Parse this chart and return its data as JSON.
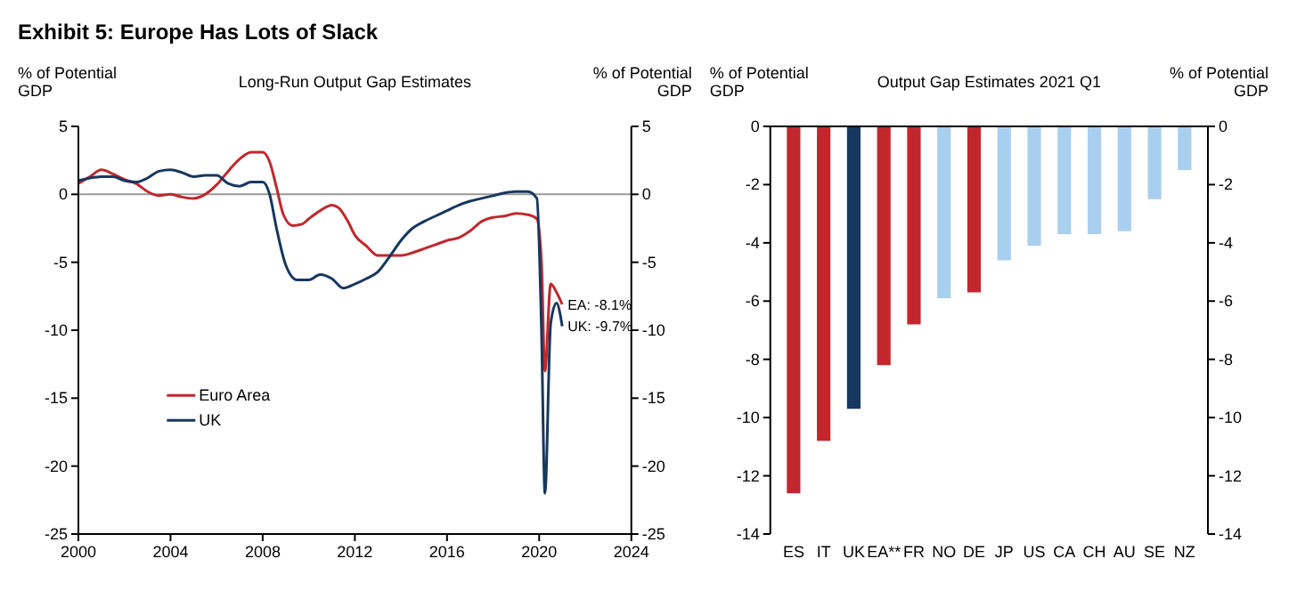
{
  "chart_data": [
    {
      "type": "line",
      "title": "Exhibit 5: Europe Has Lots of Slack",
      "subtitle": "Long-Run Output Gap Estimates",
      "ylabel": "% of Potential GDP",
      "y2label": "% of Potential GDP",
      "xlim": [
        2000,
        2024
      ],
      "xticks": [
        2000,
        2004,
        2008,
        2012,
        2016,
        2020,
        2024
      ],
      "ylim": [
        -25,
        5
      ],
      "yticks": [
        -25,
        -20,
        -15,
        -10,
        -5,
        0,
        5
      ],
      "y2lim": [
        -25,
        5
      ],
      "y2ticks": [
        -25,
        -20,
        -15,
        -10,
        -5,
        0,
        5
      ],
      "grid": false,
      "legend": "bottom left",
      "ref_lines": [
        {
          "axis": "y",
          "value": 0,
          "color": "#999999"
        }
      ],
      "annotations": [
        {
          "text": "EA: -8.1%",
          "x": 2021,
          "y": -8.1
        },
        {
          "text": "UK: -9.7%",
          "x": 2021,
          "y": -9.7
        }
      ],
      "series": [
        {
          "name": "Euro Area",
          "color": "#c0282d",
          "x": [
            2000,
            2000.5,
            2001,
            2001.5,
            2002,
            2002.5,
            2003,
            2003.5,
            2004,
            2004.5,
            2005,
            2005.5,
            2006,
            2006.5,
            2007,
            2007.5,
            2008,
            2008.3,
            2008.6,
            2008.9,
            2009.3,
            2009.7,
            2010,
            2010.5,
            2011,
            2011.3,
            2011.7,
            2012,
            2012.5,
            2013,
            2013.5,
            2014,
            2014.5,
            2015,
            2015.5,
            2016,
            2016.5,
            2017,
            2017.5,
            2018,
            2018.5,
            2019,
            2019.5,
            2019.9,
            2020.1,
            2020.25,
            2020.5,
            2020.75,
            2021
          ],
          "values": [
            0.8,
            1.3,
            1.8,
            1.5,
            1.1,
            0.8,
            0.2,
            -0.1,
            0,
            -0.2,
            -0.3,
            0,
            0.7,
            1.7,
            2.6,
            3.1,
            3.1,
            2.4,
            0.5,
            -1.5,
            -2.3,
            -2.2,
            -1.8,
            -1.2,
            -0.8,
            -1,
            -2,
            -3,
            -3.8,
            -4.5,
            -4.5,
            -4.5,
            -4.3,
            -4,
            -3.7,
            -3.4,
            -3.2,
            -2.7,
            -2,
            -1.7,
            -1.6,
            -1.4,
            -1.5,
            -1.8,
            -5,
            -13,
            -6.6,
            -7.2,
            -8.1
          ]
        },
        {
          "name": "UK",
          "color": "#17375e",
          "x": [
            2000,
            2000.5,
            2001,
            2001.5,
            2002,
            2002.5,
            2003,
            2003.5,
            2004,
            2004.5,
            2005,
            2005.5,
            2006,
            2006.5,
            2007,
            2007.5,
            2008,
            2008.3,
            2008.6,
            2009,
            2009.5,
            2010,
            2010.5,
            2011,
            2011.5,
            2012,
            2012.5,
            2013,
            2013.5,
            2014,
            2014.5,
            2015,
            2015.5,
            2016,
            2016.5,
            2017,
            2017.5,
            2018,
            2018.5,
            2019,
            2019.5,
            2019.9,
            2020.1,
            2020.25,
            2020.5,
            2020.75,
            2021
          ],
          "values": [
            1,
            1.2,
            1.3,
            1.3,
            1,
            0.9,
            1.2,
            1.7,
            1.8,
            1.6,
            1.3,
            1.4,
            1.4,
            0.8,
            0.6,
            0.9,
            0.9,
            0,
            -2.5,
            -5.2,
            -6.3,
            -6.3,
            -5.9,
            -6.2,
            -6.9,
            -6.6,
            -6.2,
            -5.7,
            -4.6,
            -3.4,
            -2.5,
            -2,
            -1.6,
            -1.2,
            -0.8,
            -0.5,
            -0.3,
            -0.1,
            0.1,
            0.2,
            0.2,
            -0.3,
            -10,
            -22,
            -9.5,
            -8,
            -9.7
          ]
        }
      ]
    },
    {
      "type": "bar",
      "subtitle": "Output Gap Estimates 2021 Q1",
      "ylabel": "% of Potential GDP",
      "y2label": "% of Potential GDP",
      "categories": [
        "ES",
        "IT",
        "UK",
        "EA**",
        "FR",
        "NO",
        "DE",
        "JP",
        "US",
        "CA",
        "CH",
        "AU",
        "SE",
        "NZ"
      ],
      "values": [
        -12.6,
        -10.8,
        -9.7,
        -8.2,
        -6.8,
        -5.9,
        -5.7,
        -4.6,
        -4.1,
        -3.7,
        -3.7,
        -3.6,
        -2.5,
        -1.5
      ],
      "colors": [
        "#c0282d",
        "#c0282d",
        "#17375e",
        "#c0282d",
        "#c0282d",
        "#a9cfee",
        "#c0282d",
        "#a9cfee",
        "#a9cfee",
        "#a9cfee",
        "#a9cfee",
        "#a9cfee",
        "#a9cfee",
        "#a9cfee"
      ],
      "ylim": [
        -14,
        0
      ],
      "yticks": [
        -14,
        -12,
        -10,
        -8,
        -6,
        -4,
        -2,
        0
      ],
      "y2lim": [
        -14,
        0
      ],
      "y2ticks": [
        -14,
        -12,
        -10,
        -8,
        -6,
        -4,
        -2,
        0
      ],
      "grid": false,
      "legend": false
    }
  ]
}
